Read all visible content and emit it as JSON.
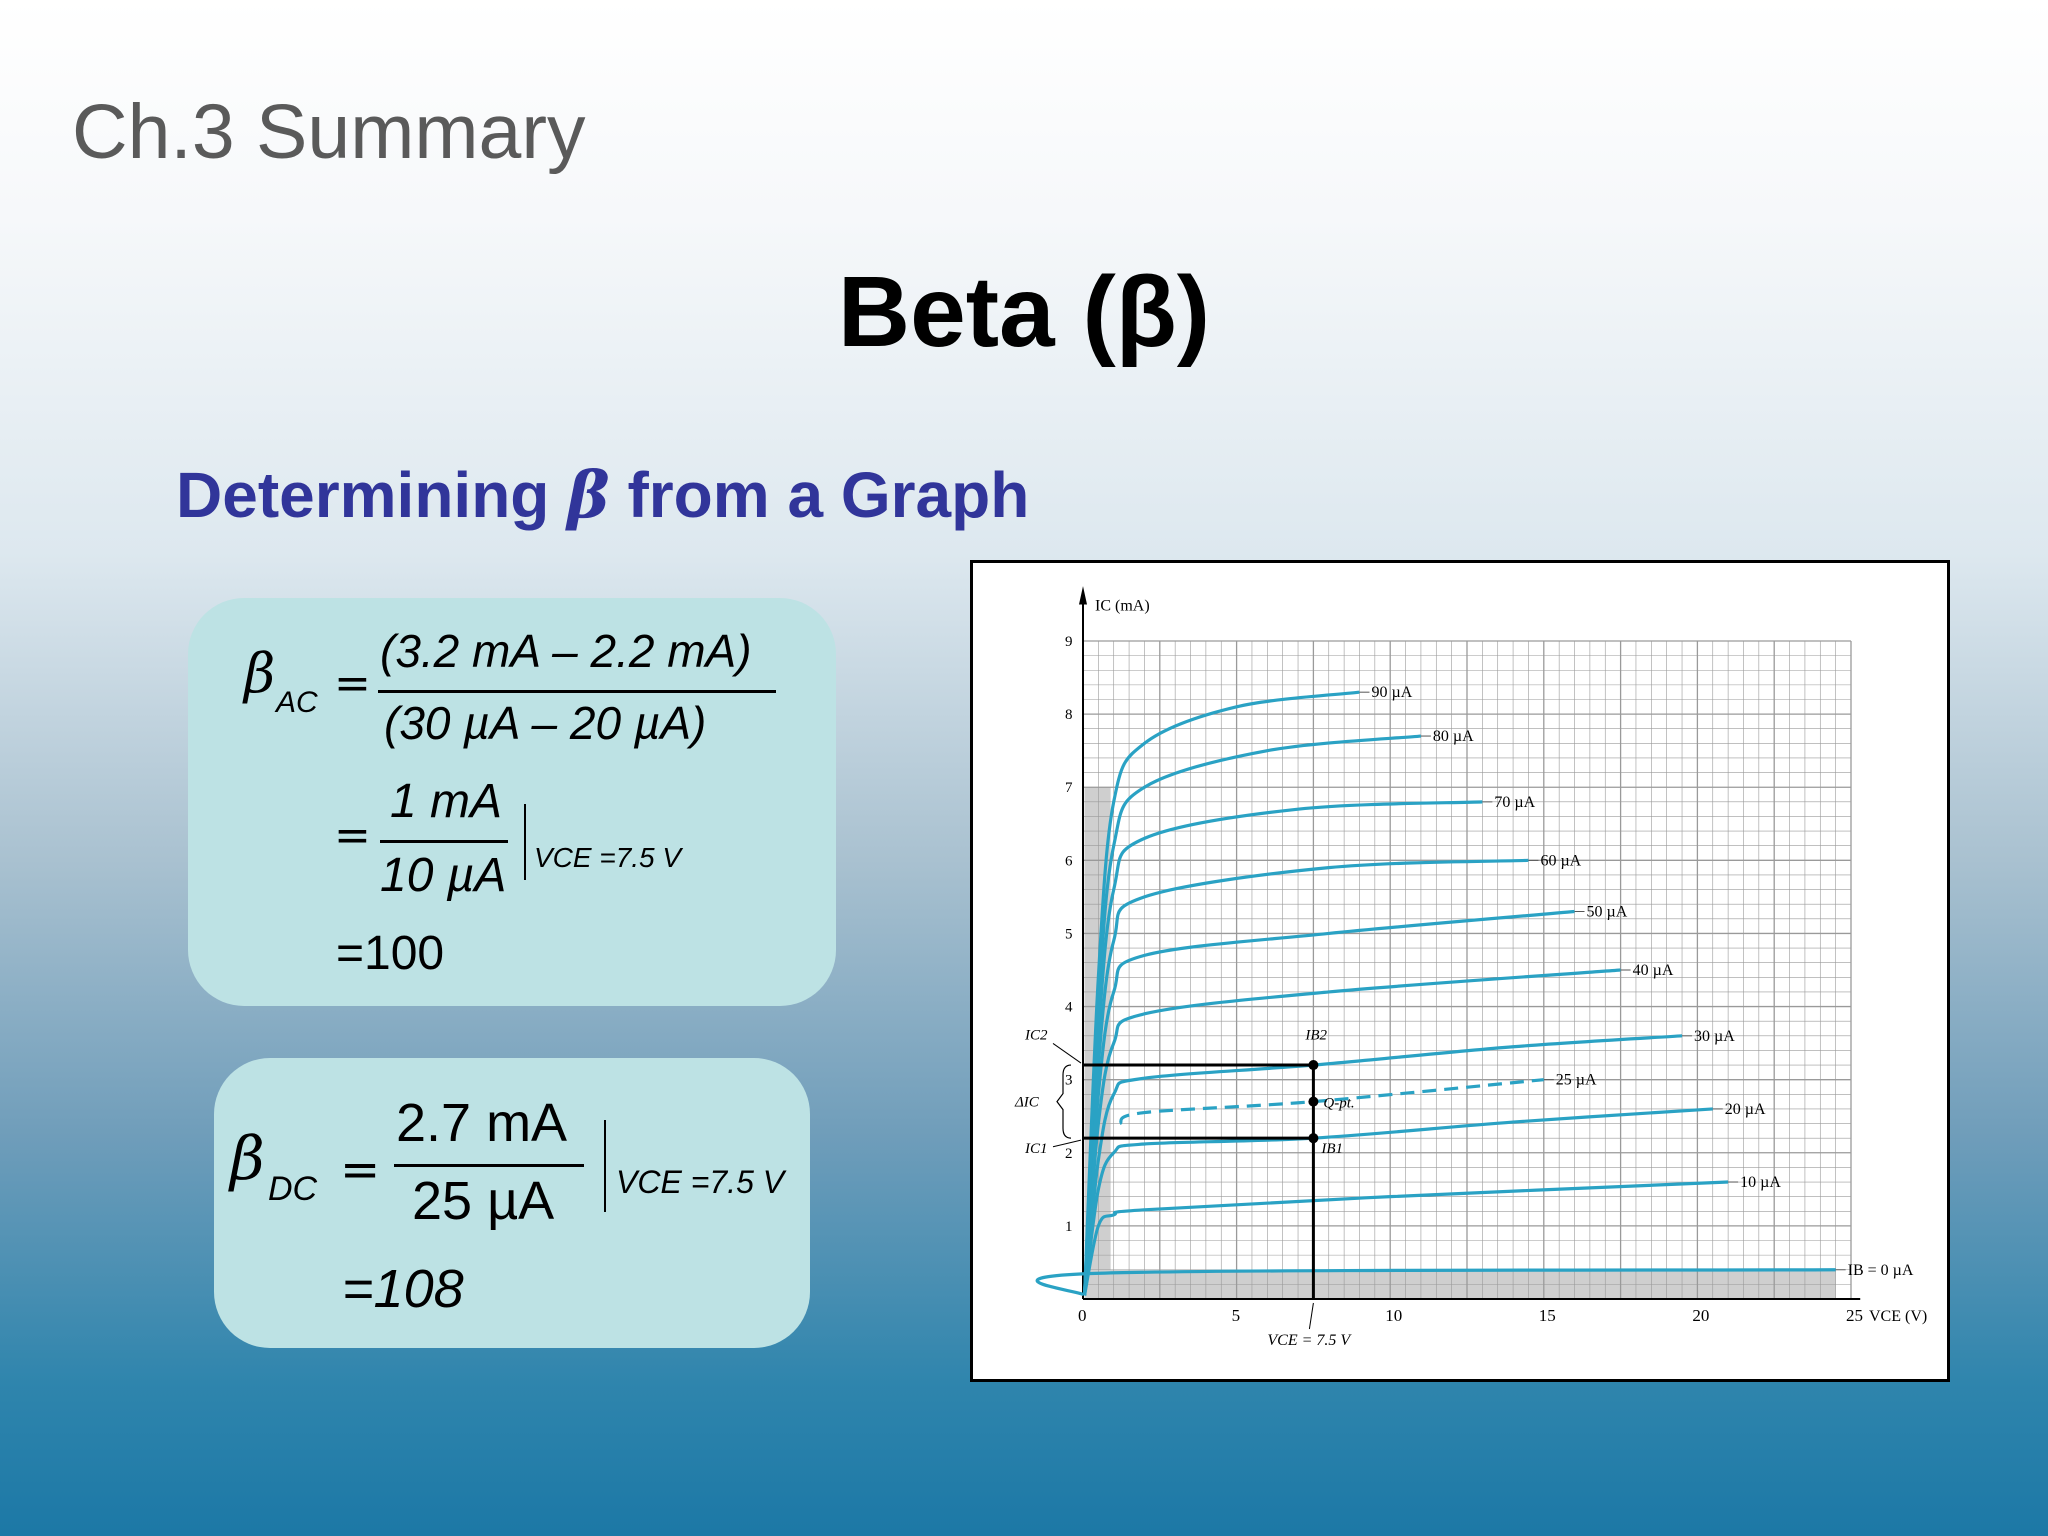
{
  "slide": {
    "section_title": "Ch.3 Summary",
    "title": "Beta (β)",
    "subtitle_prefix": "Determining",
    "subtitle_symbol": "β",
    "subtitle_suffix": "from a Graph"
  },
  "beta_ac": {
    "symbol": "β",
    "subscript": "AC",
    "eq": "=",
    "numerator": "(3.2 mA – 2.2 mA)",
    "denominator": "(30 µA  –  20 µA)",
    "step2_numerator": "1 mA",
    "step2_denominator": "10 µA",
    "condition": "VCE =7.5 V",
    "result": "=100"
  },
  "beta_dc": {
    "symbol": "β",
    "subscript": "DC",
    "eq": "=",
    "numerator": "2.7 mA",
    "denominator": "25 µA",
    "condition": "VCE =7.5 V",
    "result": "=108"
  },
  "chart_data": {
    "type": "line",
    "xlabel": "VCE (V)",
    "ylabel": "IC (mA)",
    "xlim": [
      0,
      25
    ],
    "ylim": [
      0,
      9
    ],
    "x_ticks": [
      "0",
      "5",
      "10",
      "15",
      "20",
      "25"
    ],
    "y_ticks": [
      "1",
      "2",
      "3",
      "4",
      "5",
      "6",
      "7",
      "8",
      "9"
    ],
    "grid": true,
    "series": [
      {
        "name": "IB = 0 µA",
        "points": [
          [
            0.4,
            0.35
          ],
          [
            24.5,
            0.4
          ]
        ]
      },
      {
        "name": "10 µA",
        "points": [
          [
            0.5,
            1.0
          ],
          [
            1.0,
            1.15
          ],
          [
            2.0,
            1.22
          ],
          [
            10,
            1.4
          ],
          [
            21,
            1.6
          ]
        ]
      },
      {
        "name": "20 µA",
        "points": [
          [
            0.5,
            1.5
          ],
          [
            1.0,
            2.0
          ],
          [
            2.0,
            2.12
          ],
          [
            7.5,
            2.2
          ],
          [
            14,
            2.42
          ],
          [
            20.5,
            2.6
          ]
        ]
      },
      {
        "name": "25 µA",
        "points": [
          [
            1.2,
            2.4
          ],
          [
            2.0,
            2.55
          ],
          [
            7.5,
            2.7
          ],
          [
            15,
            3.0
          ]
        ],
        "dashed": true
      },
      {
        "name": "30 µA",
        "points": [
          [
            0.5,
            1.9
          ],
          [
            1.0,
            2.8
          ],
          [
            2.0,
            3.02
          ],
          [
            7.5,
            3.2
          ],
          [
            14,
            3.45
          ],
          [
            19.5,
            3.6
          ]
        ]
      },
      {
        "name": "40 µA",
        "points": [
          [
            0.5,
            2.4
          ],
          [
            1.0,
            3.5
          ],
          [
            2.0,
            3.9
          ],
          [
            8,
            4.2
          ],
          [
            17.5,
            4.5
          ]
        ]
      },
      {
        "name": "50 µA",
        "points": [
          [
            0.5,
            2.8
          ],
          [
            1.0,
            4.2
          ],
          [
            2.0,
            4.7
          ],
          [
            8,
            5.0
          ],
          [
            16,
            5.3
          ]
        ]
      },
      {
        "name": "60 µA",
        "points": [
          [
            0.5,
            3.2
          ],
          [
            1.0,
            4.9
          ],
          [
            2.0,
            5.5
          ],
          [
            8,
            5.9
          ],
          [
            14.5,
            6.0
          ]
        ]
      },
      {
        "name": "70 µA",
        "points": [
          [
            0.5,
            3.6
          ],
          [
            1.0,
            5.6
          ],
          [
            2.0,
            6.3
          ],
          [
            7,
            6.7
          ],
          [
            13,
            6.8
          ]
        ]
      },
      {
        "name": "80 µA",
        "points": [
          [
            0.5,
            4.0
          ],
          [
            1.0,
            6.2
          ],
          [
            2.0,
            7.0
          ],
          [
            6,
            7.5
          ],
          [
            11,
            7.7
          ]
        ]
      },
      {
        "name": "90 µA",
        "points": [
          [
            0.5,
            4.4
          ],
          [
            1.0,
            6.8
          ],
          [
            2.0,
            7.6
          ],
          [
            5,
            8.1
          ],
          [
            9,
            8.3
          ]
        ]
      }
    ],
    "annotations": {
      "ic1": "IC1",
      "ic2": "IC2",
      "delta_ic": "ΔIC",
      "ib1": "IB1",
      "ib2": "IB2",
      "q_point": "Q-pt.",
      "vce_label": "VCE = 7.5 V",
      "vce_value": 7.5,
      "ic1_value": 2.2,
      "ic2_value": 3.2
    },
    "colors": {
      "curve": "#2aa2c4",
      "grid": "#9a9a9a",
      "axis": "#000000",
      "shade": "#cfcfcf"
    }
  }
}
